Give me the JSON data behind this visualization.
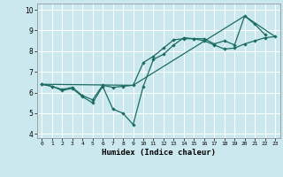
{
  "xlabel": "Humidex (Indice chaleur)",
  "bg_color": "#cce8ef",
  "grid_color": "#ffffff",
  "line_color": "#1a6b60",
  "xlim": [
    -0.5,
    23.5
  ],
  "ylim": [
    3.8,
    10.3
  ],
  "xticks": [
    0,
    1,
    2,
    3,
    4,
    5,
    6,
    7,
    8,
    9,
    10,
    11,
    12,
    13,
    14,
    15,
    16,
    17,
    18,
    19,
    20,
    21,
    22,
    23
  ],
  "yticks": [
    4,
    5,
    6,
    7,
    8,
    9,
    10
  ],
  "line1_x": [
    0,
    1,
    2,
    3,
    4,
    5,
    6,
    7,
    8,
    9,
    10,
    11,
    12,
    13,
    14,
    15,
    16,
    17,
    18,
    19,
    20,
    21,
    22
  ],
  "line1_y": [
    6.4,
    6.3,
    6.1,
    6.2,
    5.8,
    5.5,
    6.3,
    5.2,
    5.0,
    4.45,
    6.3,
    7.6,
    7.85,
    8.3,
    8.65,
    8.6,
    8.6,
    8.35,
    8.5,
    8.3,
    9.7,
    9.3,
    8.8
  ],
  "line2_x": [
    0,
    1,
    2,
    3,
    4,
    5,
    6,
    7,
    8,
    9,
    10,
    11,
    12,
    13,
    14,
    15,
    16,
    17,
    18,
    19,
    20,
    21,
    22,
    23
  ],
  "line2_y": [
    6.4,
    6.3,
    6.15,
    6.25,
    5.85,
    5.65,
    6.35,
    6.25,
    6.3,
    6.35,
    7.45,
    7.75,
    8.15,
    8.55,
    8.6,
    8.6,
    8.5,
    8.3,
    8.1,
    8.15,
    8.35,
    8.5,
    8.65,
    8.7
  ],
  "line3_x": [
    0,
    9,
    20,
    23
  ],
  "line3_y": [
    6.4,
    6.35,
    9.7,
    8.7
  ]
}
